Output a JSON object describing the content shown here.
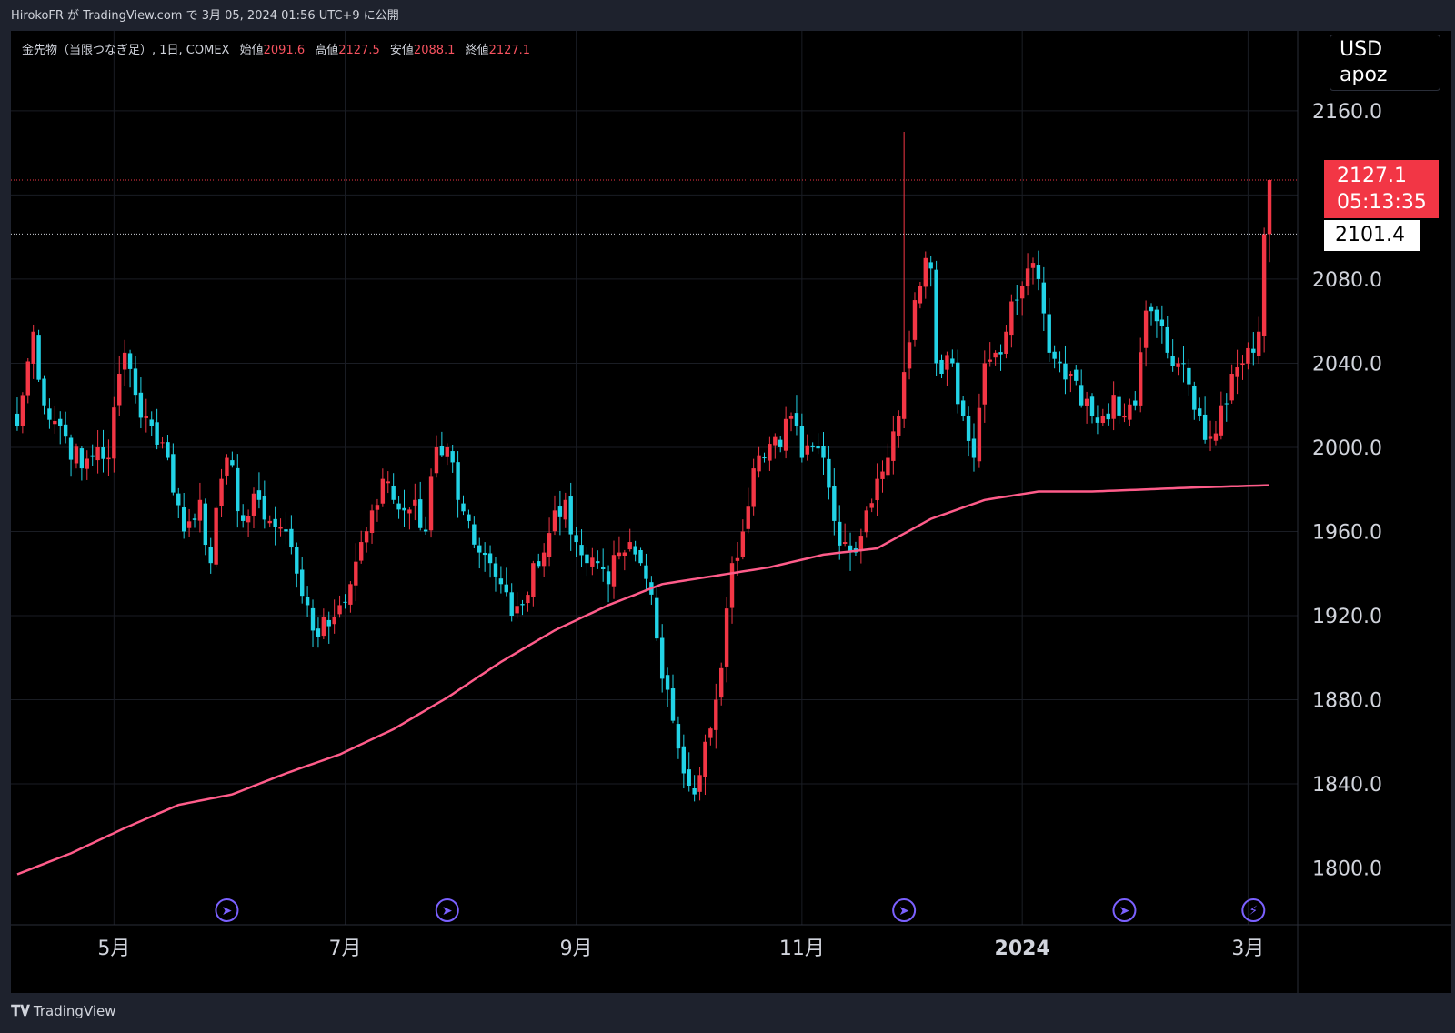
{
  "header": {
    "publish_line": "HirokoFR が TradingView.com で 3月 05, 2024 01:56 UTC+9 に公開"
  },
  "legend": {
    "symbol": "金先物（当限つなぎ足）, 1日, COMEX",
    "open_label": "始値",
    "open": "2091.6",
    "high_label": "高値",
    "high": "2127.5",
    "low_label": "安値",
    "low": "2088.1",
    "close_label": "終値",
    "close": "2127.1"
  },
  "price_axis": {
    "currency": "USD",
    "unit": "apoz"
  },
  "last_price": {
    "value": "2127.1",
    "countdown": "05:13:35"
  },
  "prev_close": {
    "value": "2101.4"
  },
  "footer": {
    "brand": "TradingView"
  },
  "colors": {
    "up": "#f23645",
    "down": "#22d3e6",
    "ma": "#ff5c8a",
    "grid": "#1a1d24",
    "event": "#7b61ff"
  },
  "chart_data": {
    "type": "candlestick",
    "y_ticks": [
      1800,
      1840,
      1880,
      1920,
      1960,
      2000,
      2040,
      2080,
      2120,
      2160
    ],
    "y_tick_labels": [
      "1800.0",
      "1840.0",
      "1880.0",
      "1920.0",
      "1960.0",
      "2000.0",
      "2040.0",
      "2080.0",
      "",
      "2160.0"
    ],
    "ylim": [
      1773,
      2198
    ],
    "x_ticks": [
      {
        "label": "5月",
        "i": 18
      },
      {
        "label": "7月",
        "i": 61
      },
      {
        "label": "9月",
        "i": 104
      },
      {
        "label": "11月",
        "i": 146
      },
      {
        "label": "2024",
        "i": 187
      },
      {
        "label": "3月",
        "i": 229
      }
    ],
    "event_markers": [
      {
        "i": 39,
        "type": "dividend"
      },
      {
        "i": 80,
        "type": "dividend"
      },
      {
        "i": 165,
        "type": "dividend"
      },
      {
        "i": 206,
        "type": "dividend"
      },
      {
        "i": 230,
        "type": "earnings"
      }
    ],
    "anchors": [
      [
        0,
        2010
      ],
      [
        3,
        2055
      ],
      [
        5,
        2020
      ],
      [
        8,
        2010
      ],
      [
        12,
        1990
      ],
      [
        15,
        2000
      ],
      [
        17,
        1995
      ],
      [
        19,
        2035
      ],
      [
        20,
        2045
      ],
      [
        22,
        2025
      ],
      [
        25,
        2010
      ],
      [
        28,
        1995
      ],
      [
        31,
        1960
      ],
      [
        34,
        1975
      ],
      [
        36,
        1945
      ],
      [
        38,
        1985
      ],
      [
        39,
        1995
      ],
      [
        42,
        1965
      ],
      [
        45,
        1975
      ],
      [
        47,
        1965
      ],
      [
        50,
        1960
      ],
      [
        52,
        1940
      ],
      [
        54,
        1925
      ],
      [
        56,
        1910
      ],
      [
        58,
        1915
      ],
      [
        60,
        1925
      ],
      [
        62,
        1935
      ],
      [
        64,
        1955
      ],
      [
        66,
        1970
      ],
      [
        68,
        1985
      ],
      [
        70,
        1975
      ],
      [
        72,
        1970
      ],
      [
        74,
        1975
      ],
      [
        76,
        1960
      ],
      [
        78,
        2000
      ],
      [
        80,
        2000
      ],
      [
        82,
        1975
      ],
      [
        84,
        1965
      ],
      [
        86,
        1950
      ],
      [
        88,
        1945
      ],
      [
        90,
        1935
      ],
      [
        92,
        1920
      ],
      [
        94,
        1925
      ],
      [
        96,
        1945
      ],
      [
        98,
        1950
      ],
      [
        100,
        1970
      ],
      [
        102,
        1975
      ],
      [
        104,
        1955
      ],
      [
        106,
        1945
      ],
      [
        108,
        1945
      ],
      [
        110,
        1935
      ],
      [
        112,
        1950
      ],
      [
        114,
        1955
      ],
      [
        116,
        1945
      ],
      [
        118,
        1930
      ],
      [
        120,
        1890
      ],
      [
        122,
        1870
      ],
      [
        124,
        1845
      ],
      [
        126,
        1835
      ],
      [
        128,
        1860
      ],
      [
        130,
        1880
      ],
      [
        131,
        1895
      ],
      [
        133,
        1945
      ],
      [
        135,
        1960
      ],
      [
        137,
        1990
      ],
      [
        139,
        1995
      ],
      [
        142,
        2000
      ],
      [
        144,
        2015
      ],
      [
        146,
        1995
      ],
      [
        148,
        2000
      ],
      [
        150,
        1995
      ],
      [
        152,
        1965
      ],
      [
        154,
        1955
      ],
      [
        156,
        1950
      ],
      [
        158,
        1970
      ],
      [
        160,
        1985
      ],
      [
        162,
        1995
      ],
      [
        164,
        2015
      ],
      [
        166,
        2050
      ],
      [
        167,
        2070
      ],
      [
        169,
        2090
      ],
      [
        170,
        2085
      ],
      [
        171,
        2040
      ],
      [
        172,
        2035
      ],
      [
        174,
        2040
      ],
      [
        176,
        2015
      ],
      [
        178,
        1995
      ],
      [
        180,
        2040
      ],
      [
        182,
        2045
      ],
      [
        184,
        2055
      ],
      [
        186,
        2070
      ],
      [
        188,
        2085
      ],
      [
        190,
        2080
      ],
      [
        192,
        2045
      ],
      [
        194,
        2040
      ],
      [
        196,
        2035
      ],
      [
        198,
        2020
      ],
      [
        200,
        2015
      ],
      [
        202,
        2015
      ],
      [
        204,
        2025
      ],
      [
        206,
        2015
      ],
      [
        208,
        2020
      ],
      [
        210,
        2065
      ],
      [
        212,
        2060
      ],
      [
        214,
        2045
      ],
      [
        216,
        2040
      ],
      [
        218,
        2030
      ],
      [
        220,
        2015
      ],
      [
        222,
        2005
      ],
      [
        224,
        2020
      ],
      [
        226,
        2035
      ],
      [
        228,
        2040
      ],
      [
        230,
        2045
      ],
      [
        231,
        2055
      ],
      [
        232,
        2101.4
      ],
      [
        233,
        2127.1
      ]
    ],
    "ma_anchors": [
      [
        0,
        1797
      ],
      [
        10,
        1807
      ],
      [
        20,
        1819
      ],
      [
        30,
        1830
      ],
      [
        40,
        1835
      ],
      [
        50,
        1845
      ],
      [
        60,
        1854
      ],
      [
        70,
        1866
      ],
      [
        80,
        1881
      ],
      [
        90,
        1898
      ],
      [
        100,
        1913
      ],
      [
        110,
        1925
      ],
      [
        120,
        1935
      ],
      [
        130,
        1939
      ],
      [
        140,
        1943
      ],
      [
        150,
        1949
      ],
      [
        160,
        1952
      ],
      [
        170,
        1966
      ],
      [
        180,
        1975
      ],
      [
        190,
        1979
      ],
      [
        200,
        1979
      ],
      [
        210,
        1980
      ],
      [
        220,
        1981
      ],
      [
        233,
        1982
      ]
    ],
    "n_bars": 234
  }
}
